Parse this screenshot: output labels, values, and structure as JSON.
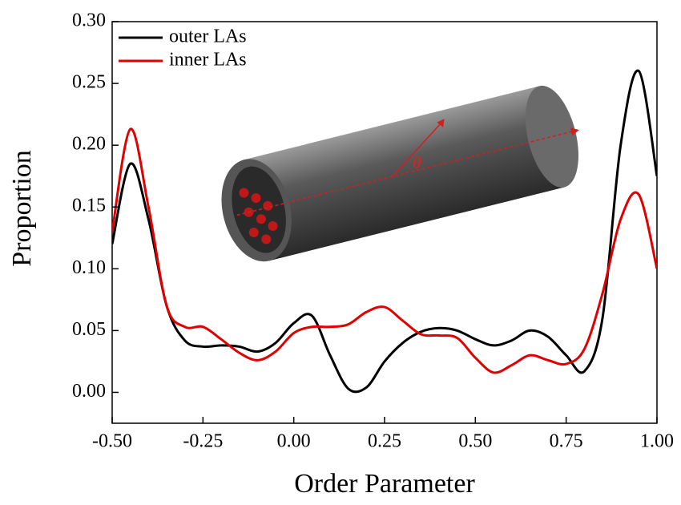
{
  "chart_data": {
    "type": "line",
    "x_label": "Order Parameter",
    "y_label": "Proportion",
    "annotation": "θ",
    "x": [
      -0.5,
      -0.45,
      -0.4,
      -0.35,
      -0.3,
      -0.25,
      -0.2,
      -0.15,
      -0.1,
      -0.05,
      0,
      0.05,
      0.1,
      0.15,
      0.2,
      0.25,
      0.3,
      0.35,
      0.4,
      0.45,
      0.5,
      0.55,
      0.6,
      0.65,
      0.7,
      0.75,
      0.8,
      0.85,
      0.9,
      0.95,
      1.0
    ],
    "series": [
      {
        "name": "outer LAs",
        "color": "#000000",
        "values": [
          0.12,
          0.185,
          0.14,
          0.07,
          0.042,
          0.037,
          0.038,
          0.037,
          0.033,
          0.04,
          0.056,
          0.062,
          0.03,
          0.003,
          0.004,
          0.025,
          0.04,
          0.049,
          0.052,
          0.05,
          0.043,
          0.038,
          0.042,
          0.05,
          0.045,
          0.03,
          0.017,
          0.06,
          0.2,
          0.26,
          0.175
        ]
      },
      {
        "name": "inner LAs",
        "color": "#e00000",
        "values": [
          0.13,
          0.213,
          0.15,
          0.07,
          0.053,
          0.053,
          0.043,
          0.032,
          0.026,
          0.033,
          0.048,
          0.053,
          0.053,
          0.055,
          0.065,
          0.069,
          0.058,
          0.047,
          0.046,
          0.044,
          0.028,
          0.016,
          0.022,
          0.03,
          0.026,
          0.023,
          0.035,
          0.08,
          0.14,
          0.16,
          0.1
        ]
      }
    ],
    "xlim": [
      -0.5,
      1.0
    ],
    "xticks": [
      {
        "value": -0.5,
        "label": "-0.50"
      },
      {
        "value": -0.25,
        "label": "-0.25"
      },
      {
        "value": 0,
        "label": "0.00"
      },
      {
        "value": 0.25,
        "label": "0.25"
      },
      {
        "value": 0.5,
        "label": "0.50"
      },
      {
        "value": 0.75,
        "label": "0.75"
      },
      {
        "value": 1.0,
        "label": "1.00"
      }
    ],
    "ylim": [
      -0.025,
      0.3
    ],
    "yticks": [
      {
        "value": 0,
        "label": "0.00"
      },
      {
        "value": 0.05,
        "label": "0.05"
      },
      {
        "value": 0.1,
        "label": "0.10"
      },
      {
        "value": 0.15,
        "label": "0.15"
      },
      {
        "value": 0.2,
        "label": "0.20"
      },
      {
        "value": 0.25,
        "label": "0.25"
      },
      {
        "value": 0.3,
        "label": "0.30"
      }
    ],
    "legend": "upper left",
    "grid": false
  }
}
